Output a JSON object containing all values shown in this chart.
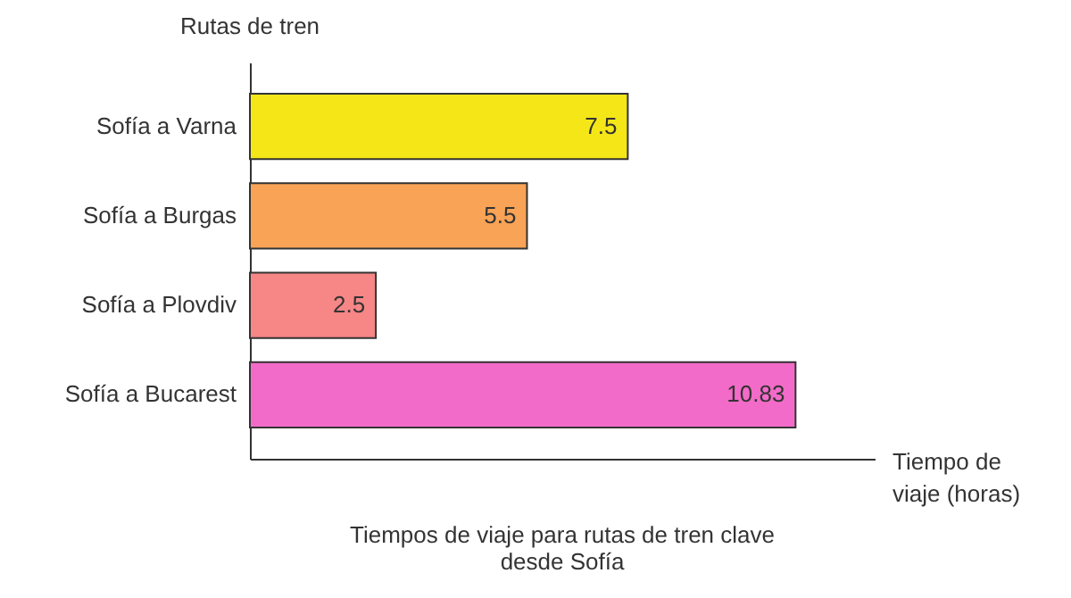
{
  "chart_data": {
    "type": "bar",
    "orientation": "horizontal",
    "title": "Tiempos de viaje para rutas de tren clave desde Sofía",
    "xlabel": "Tiempo de viaje (horas)",
    "ylabel": "Rutas de tren",
    "categories": [
      "Sofía a Varna",
      "Sofía a Burgas",
      "Sofía a Plovdiv",
      "Sofía a Bucarest"
    ],
    "values": [
      7.5,
      5.5,
      2.5,
      10.83
    ],
    "colors": [
      "#f5e617",
      "#f9a356",
      "#f78686",
      "#f36bc8"
    ],
    "xlim": [
      0,
      12.4
    ],
    "tick_labels": "y",
    "data_labels": true,
    "grid": false
  }
}
